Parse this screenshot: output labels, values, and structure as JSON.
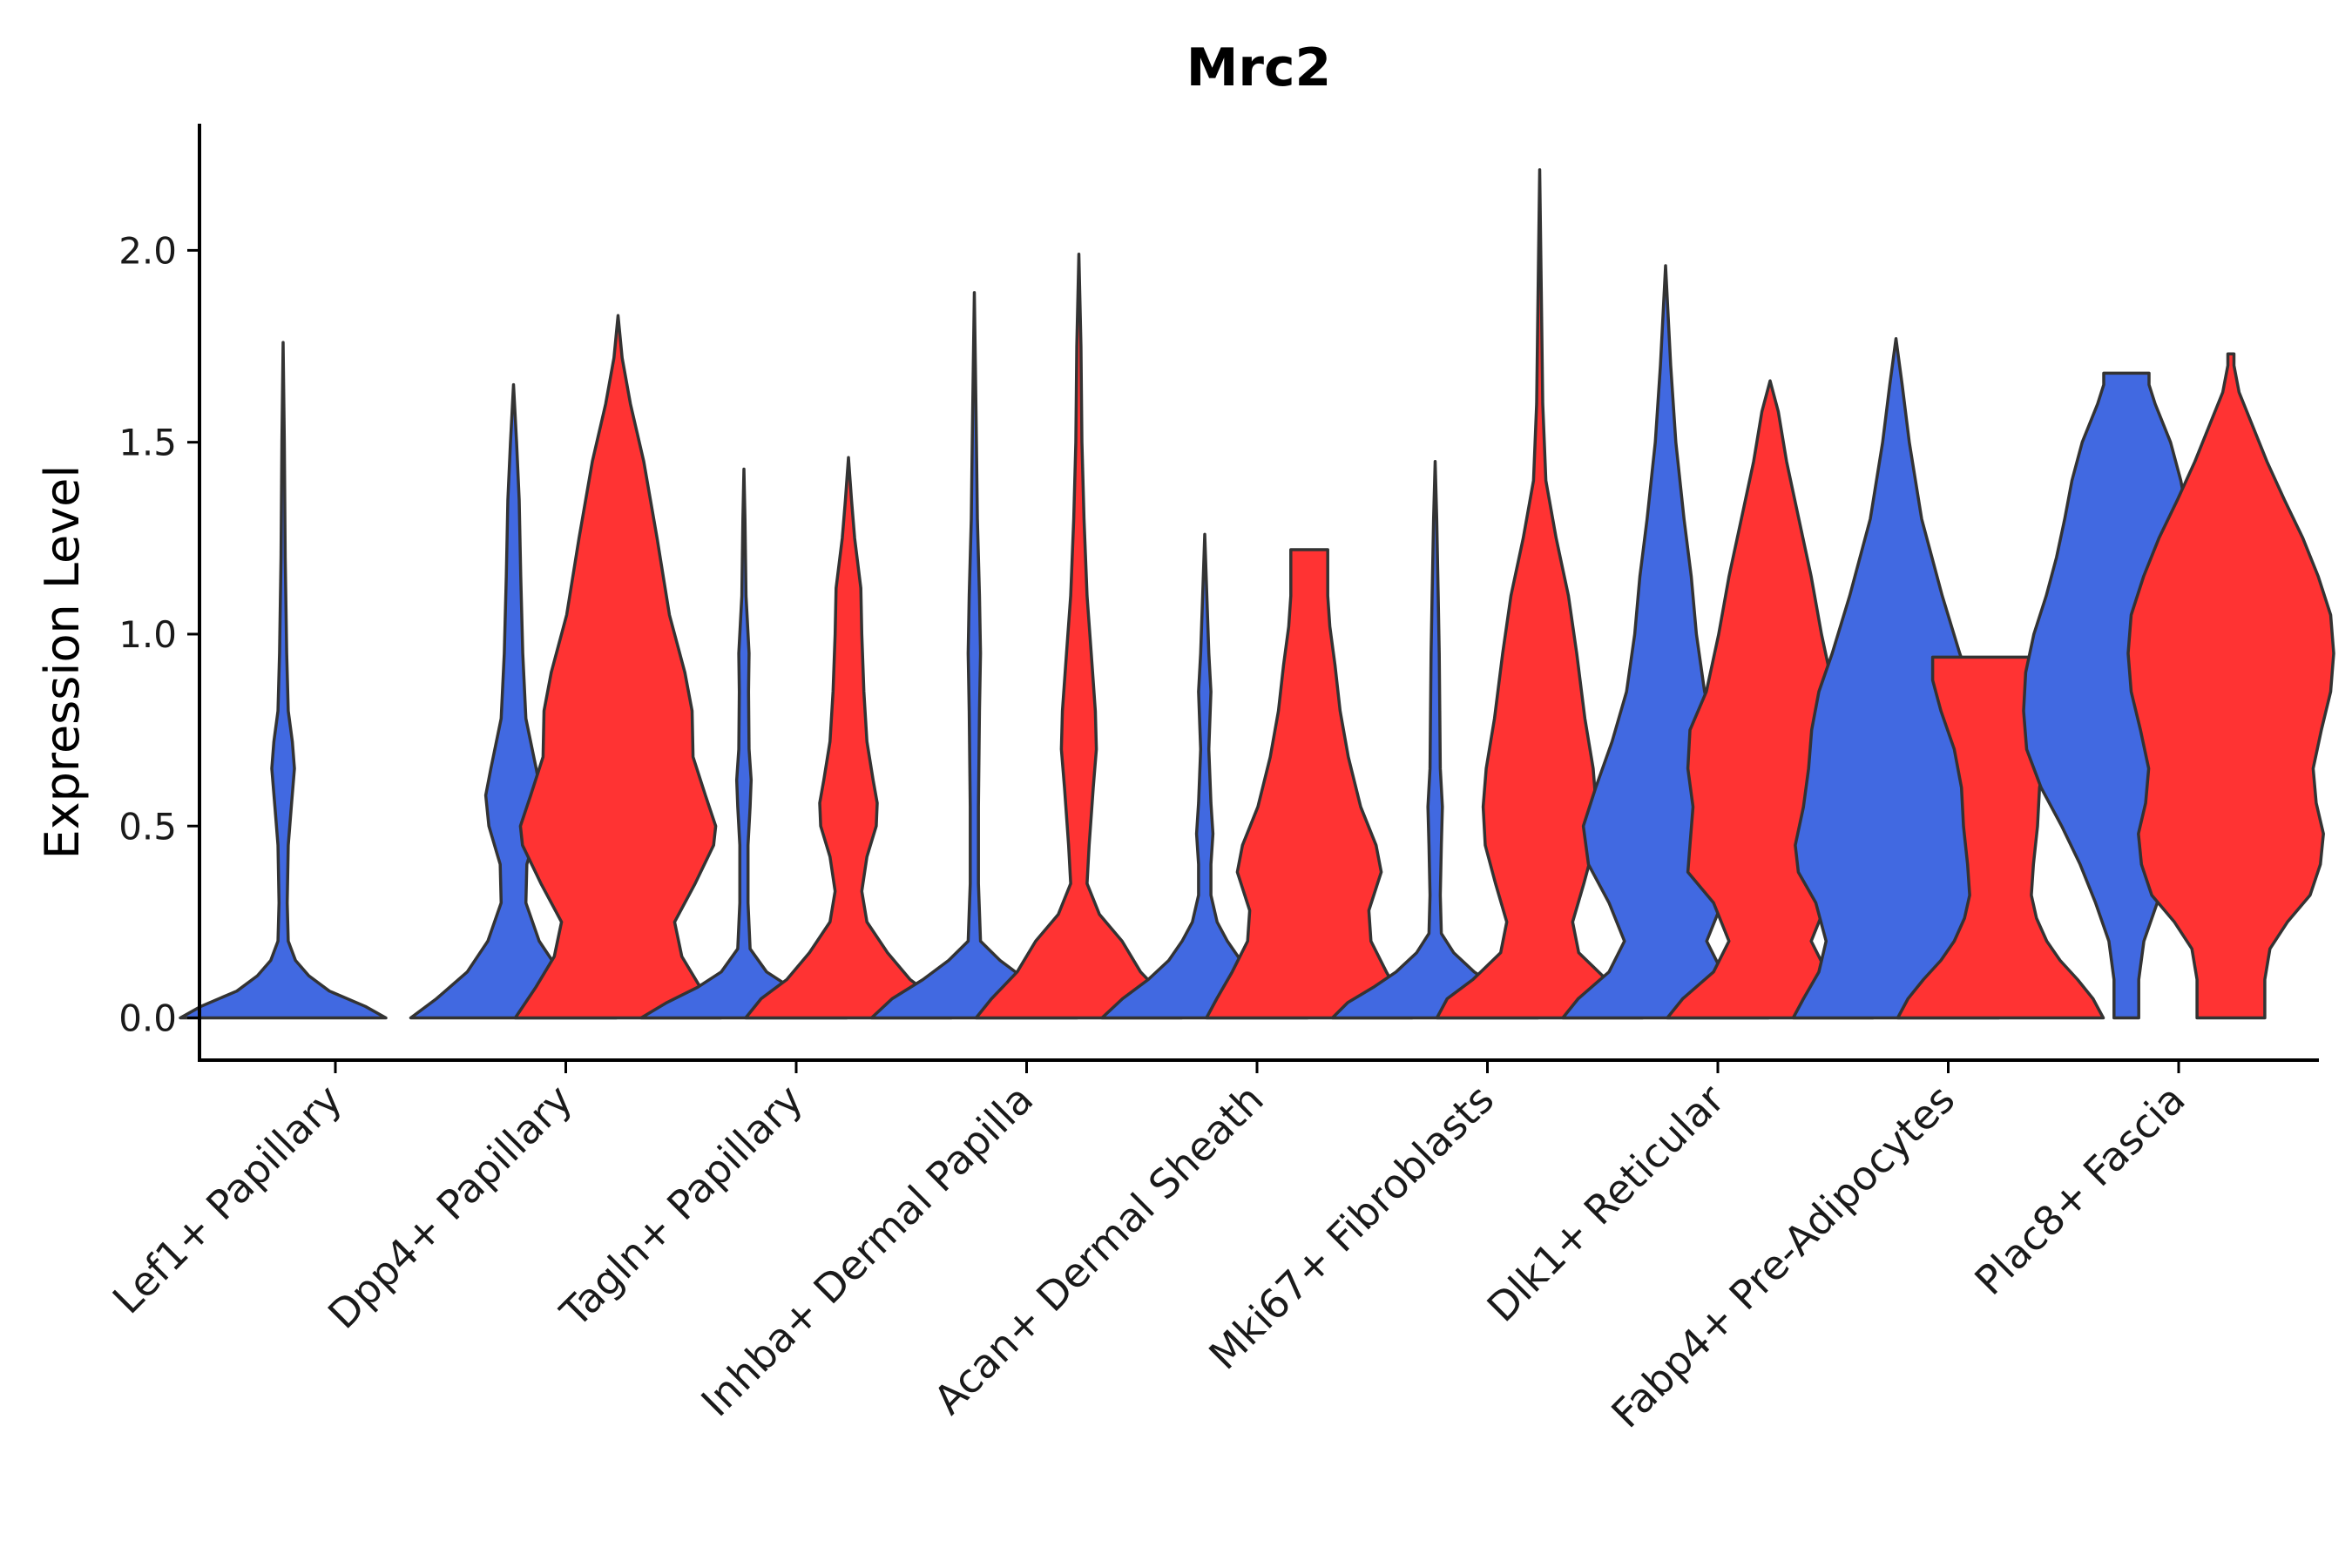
{
  "chart_data": {
    "type": "violin",
    "title": "Mrc2",
    "xlabel": "",
    "ylabel": "Expression Level",
    "ylim": [
      -0.11,
      2.33
    ],
    "yticks": [
      0.0,
      0.5,
      1.0,
      1.5,
      2.0
    ],
    "ytick_labels": [
      "0.0",
      "0.5",
      "1.0",
      "1.5",
      "2.0"
    ],
    "grid": false,
    "legend": "none",
    "series": [
      {
        "name": "group-blue",
        "color": "#4169E1"
      },
      {
        "name": "group-red",
        "color": "#FF3333"
      }
    ],
    "categories": [
      "Lef1+ Papillary",
      "Dpp4+ Papillary",
      "Tagln+ Papillary",
      "Inhba+ Dermal Papilla",
      "Acan+ Dermal Sheath",
      "Mki67+ Fibroblasts",
      "Dlk1+ Reticular",
      "Fabp4+ Pre-Adipocytes",
      "Plac8+ Fascia"
    ],
    "violins": [
      {
        "category": "Lef1+ Papillary",
        "series": "group-blue",
        "max": 1.76,
        "profile": [
          [
            0.0,
            1.0
          ],
          [
            0.03,
            0.8
          ],
          [
            0.07,
            0.45
          ],
          [
            0.11,
            0.25
          ],
          [
            0.15,
            0.12
          ],
          [
            0.2,
            0.05
          ],
          [
            0.3,
            0.04
          ],
          [
            0.45,
            0.05
          ],
          [
            0.55,
            0.08
          ],
          [
            0.65,
            0.11
          ],
          [
            0.72,
            0.09
          ],
          [
            0.8,
            0.05
          ],
          [
            0.95,
            0.035
          ],
          [
            1.2,
            0.02
          ],
          [
            1.5,
            0.012
          ],
          [
            1.76,
            0.0
          ]
        ]
      },
      {
        "category": "Dpp4+ Papillary",
        "series": "group-blue",
        "max": 1.65,
        "profile": [
          [
            0.0,
            1.0
          ],
          [
            0.05,
            0.75
          ],
          [
            0.12,
            0.45
          ],
          [
            0.2,
            0.25
          ],
          [
            0.3,
            0.12
          ],
          [
            0.4,
            0.13
          ],
          [
            0.5,
            0.24
          ],
          [
            0.58,
            0.27
          ],
          [
            0.65,
            0.22
          ],
          [
            0.78,
            0.12
          ],
          [
            0.95,
            0.09
          ],
          [
            1.15,
            0.07
          ],
          [
            1.35,
            0.055
          ],
          [
            1.5,
            0.03
          ],
          [
            1.65,
            0.0
          ]
        ]
      },
      {
        "category": "Dpp4+ Papillary",
        "series": "group-red",
        "max": 1.83,
        "profile": [
          [
            0.0,
            1.0
          ],
          [
            0.08,
            0.8
          ],
          [
            0.16,
            0.62
          ],
          [
            0.25,
            0.55
          ],
          [
            0.35,
            0.75
          ],
          [
            0.45,
            0.93
          ],
          [
            0.5,
            0.95
          ],
          [
            0.58,
            0.85
          ],
          [
            0.68,
            0.73
          ],
          [
            0.8,
            0.72
          ],
          [
            0.9,
            0.65
          ],
          [
            1.05,
            0.5
          ],
          [
            1.25,
            0.38
          ],
          [
            1.45,
            0.25
          ],
          [
            1.6,
            0.12
          ],
          [
            1.72,
            0.04
          ],
          [
            1.83,
            0.0
          ]
        ]
      },
      {
        "category": "Tagln+ Papillary",
        "series": "group-blue",
        "max": 1.43,
        "profile": [
          [
            0.0,
            1.0
          ],
          [
            0.04,
            0.75
          ],
          [
            0.08,
            0.45
          ],
          [
            0.12,
            0.22
          ],
          [
            0.18,
            0.06
          ],
          [
            0.3,
            0.04
          ],
          [
            0.45,
            0.04
          ],
          [
            0.55,
            0.06
          ],
          [
            0.62,
            0.07
          ],
          [
            0.7,
            0.05
          ],
          [
            0.85,
            0.045
          ],
          [
            0.95,
            0.05
          ],
          [
            1.1,
            0.02
          ],
          [
            1.3,
            0.01
          ],
          [
            1.43,
            0.0
          ]
        ]
      },
      {
        "category": "Tagln+ Papillary",
        "series": "group-red",
        "max": 1.46,
        "profile": [
          [
            0.0,
            1.0
          ],
          [
            0.05,
            0.85
          ],
          [
            0.1,
            0.6
          ],
          [
            0.17,
            0.38
          ],
          [
            0.25,
            0.18
          ],
          [
            0.33,
            0.13
          ],
          [
            0.42,
            0.18
          ],
          [
            0.5,
            0.27
          ],
          [
            0.56,
            0.28
          ],
          [
            0.62,
            0.24
          ],
          [
            0.72,
            0.18
          ],
          [
            0.85,
            0.15
          ],
          [
            1.0,
            0.13
          ],
          [
            1.12,
            0.12
          ],
          [
            1.25,
            0.06
          ],
          [
            1.35,
            0.03
          ],
          [
            1.46,
            0.0
          ]
        ]
      },
      {
        "category": "Inhba+ Dermal Papilla",
        "series": "group-blue",
        "max": 1.89,
        "profile": [
          [
            0.0,
            1.0
          ],
          [
            0.05,
            0.8
          ],
          [
            0.1,
            0.5
          ],
          [
            0.15,
            0.25
          ],
          [
            0.2,
            0.06
          ],
          [
            0.35,
            0.04
          ],
          [
            0.55,
            0.04
          ],
          [
            0.8,
            0.05
          ],
          [
            0.95,
            0.06
          ],
          [
            1.1,
            0.05
          ],
          [
            1.3,
            0.03
          ],
          [
            1.5,
            0.02
          ],
          [
            1.7,
            0.01
          ],
          [
            1.89,
            0.0
          ]
        ]
      },
      {
        "category": "Inhba+ Dermal Papilla",
        "series": "group-red",
        "max": 1.99,
        "profile": [
          [
            0.0,
            1.0
          ],
          [
            0.05,
            0.85
          ],
          [
            0.12,
            0.6
          ],
          [
            0.2,
            0.42
          ],
          [
            0.27,
            0.2
          ],
          [
            0.35,
            0.08
          ],
          [
            0.45,
            0.1
          ],
          [
            0.6,
            0.14
          ],
          [
            0.7,
            0.17
          ],
          [
            0.8,
            0.16
          ],
          [
            0.95,
            0.12
          ],
          [
            1.1,
            0.08
          ],
          [
            1.3,
            0.05
          ],
          [
            1.5,
            0.03
          ],
          [
            1.75,
            0.02
          ],
          [
            1.99,
            0.0
          ]
        ]
      },
      {
        "category": "Acan+ Dermal Sheath",
        "series": "group-blue",
        "max": 1.26,
        "profile": [
          [
            0.0,
            1.0
          ],
          [
            0.05,
            0.8
          ],
          [
            0.1,
            0.55
          ],
          [
            0.15,
            0.35
          ],
          [
            0.2,
            0.22
          ],
          [
            0.25,
            0.12
          ],
          [
            0.32,
            0.06
          ],
          [
            0.4,
            0.06
          ],
          [
            0.48,
            0.08
          ],
          [
            0.56,
            0.06
          ],
          [
            0.7,
            0.04
          ],
          [
            0.85,
            0.06
          ],
          [
            0.95,
            0.04
          ],
          [
            1.1,
            0.02
          ],
          [
            1.26,
            0.0
          ]
        ]
      },
      {
        "category": "Acan+ Dermal Sheath",
        "series": "group-red",
        "max": 1.22,
        "profile": [
          [
            0.0,
            1.0
          ],
          [
            0.05,
            0.9
          ],
          [
            0.12,
            0.75
          ],
          [
            0.2,
            0.6
          ],
          [
            0.28,
            0.58
          ],
          [
            0.38,
            0.7
          ],
          [
            0.45,
            0.65
          ],
          [
            0.55,
            0.5
          ],
          [
            0.68,
            0.38
          ],
          [
            0.8,
            0.3
          ],
          [
            0.92,
            0.25
          ],
          [
            1.02,
            0.2
          ],
          [
            1.1,
            0.18
          ],
          [
            1.2,
            0.18
          ],
          [
            1.22,
            0.18
          ]
        ]
      },
      {
        "category": "Mki67+ Fibroblasts",
        "series": "group-blue",
        "max": 1.45,
        "profile": [
          [
            0.0,
            1.0
          ],
          [
            0.04,
            0.85
          ],
          [
            0.08,
            0.6
          ],
          [
            0.12,
            0.38
          ],
          [
            0.17,
            0.18
          ],
          [
            0.22,
            0.06
          ],
          [
            0.32,
            0.05
          ],
          [
            0.45,
            0.06
          ],
          [
            0.55,
            0.07
          ],
          [
            0.65,
            0.05
          ],
          [
            0.8,
            0.045
          ],
          [
            0.95,
            0.04
          ],
          [
            1.1,
            0.03
          ],
          [
            1.3,
            0.015
          ],
          [
            1.45,
            0.0
          ]
        ]
      },
      {
        "category": "Mki67+ Fibroblasts",
        "series": "group-red",
        "max": 2.21,
        "profile": [
          [
            0.0,
            1.0
          ],
          [
            0.05,
            0.9
          ],
          [
            0.1,
            0.65
          ],
          [
            0.17,
            0.38
          ],
          [
            0.25,
            0.32
          ],
          [
            0.35,
            0.43
          ],
          [
            0.45,
            0.53
          ],
          [
            0.55,
            0.55
          ],
          [
            0.65,
            0.52
          ],
          [
            0.78,
            0.44
          ],
          [
            0.95,
            0.36
          ],
          [
            1.1,
            0.28
          ],
          [
            1.25,
            0.16
          ],
          [
            1.4,
            0.06
          ],
          [
            1.6,
            0.03
          ],
          [
            1.9,
            0.015
          ],
          [
            2.21,
            0.0
          ]
        ]
      },
      {
        "category": "Dlk1+ Reticular",
        "series": "group-blue",
        "max": 1.96,
        "profile": [
          [
            0.0,
            1.0
          ],
          [
            0.05,
            0.85
          ],
          [
            0.12,
            0.55
          ],
          [
            0.2,
            0.4
          ],
          [
            0.3,
            0.55
          ],
          [
            0.4,
            0.75
          ],
          [
            0.5,
            0.8
          ],
          [
            0.6,
            0.68
          ],
          [
            0.72,
            0.52
          ],
          [
            0.85,
            0.38
          ],
          [
            1.0,
            0.3
          ],
          [
            1.15,
            0.25
          ],
          [
            1.3,
            0.18
          ],
          [
            1.5,
            0.1
          ],
          [
            1.7,
            0.05
          ],
          [
            1.96,
            0.0
          ]
        ]
      },
      {
        "category": "Dlk1+ Reticular",
        "series": "group-red",
        "max": 1.66,
        "profile": [
          [
            0.0,
            1.0
          ],
          [
            0.05,
            0.85
          ],
          [
            0.12,
            0.55
          ],
          [
            0.2,
            0.4
          ],
          [
            0.3,
            0.55
          ],
          [
            0.38,
            0.8
          ],
          [
            0.45,
            0.78
          ],
          [
            0.55,
            0.75
          ],
          [
            0.65,
            0.8
          ],
          [
            0.75,
            0.78
          ],
          [
            0.85,
            0.62
          ],
          [
            1.0,
            0.5
          ],
          [
            1.15,
            0.4
          ],
          [
            1.3,
            0.28
          ],
          [
            1.45,
            0.16
          ],
          [
            1.58,
            0.08
          ],
          [
            1.66,
            0.0
          ]
        ]
      },
      {
        "category": "Fabp4+ Pre-Adipocytes",
        "series": "group-blue",
        "max": 1.77,
        "profile": [
          [
            0.0,
            1.0
          ],
          [
            0.05,
            0.9
          ],
          [
            0.12,
            0.75
          ],
          [
            0.2,
            0.68
          ],
          [
            0.3,
            0.78
          ],
          [
            0.38,
            0.95
          ],
          [
            0.45,
            0.98
          ],
          [
            0.55,
            0.9
          ],
          [
            0.65,
            0.85
          ],
          [
            0.75,
            0.82
          ],
          [
            0.85,
            0.75
          ],
          [
            0.95,
            0.62
          ],
          [
            1.1,
            0.45
          ],
          [
            1.3,
            0.25
          ],
          [
            1.5,
            0.13
          ],
          [
            1.65,
            0.06
          ],
          [
            1.77,
            0.0
          ]
        ]
      },
      {
        "category": "Fabp4+ Pre-Adipocytes",
        "series": "group-red",
        "max": 0.94,
        "profile": [
          [
            0.0,
            1.0
          ],
          [
            0.05,
            0.9
          ],
          [
            0.1,
            0.75
          ],
          [
            0.15,
            0.58
          ],
          [
            0.2,
            0.45
          ],
          [
            0.26,
            0.35
          ],
          [
            0.32,
            0.3
          ],
          [
            0.4,
            0.32
          ],
          [
            0.5,
            0.36
          ],
          [
            0.6,
            0.38
          ],
          [
            0.7,
            0.45
          ],
          [
            0.8,
            0.58
          ],
          [
            0.88,
            0.66
          ],
          [
            0.94,
            0.66
          ]
        ]
      },
      {
        "category": "Plac8+ Fascia",
        "series": "group-blue",
        "max": 1.68,
        "profile": [
          [
            0.0,
            0.12
          ],
          [
            0.1,
            0.12
          ],
          [
            0.2,
            0.17
          ],
          [
            0.3,
            0.3
          ],
          [
            0.4,
            0.45
          ],
          [
            0.5,
            0.63
          ],
          [
            0.6,
            0.83
          ],
          [
            0.7,
            0.97
          ],
          [
            0.8,
            1.0
          ],
          [
            0.9,
            0.98
          ],
          [
            1.0,
            0.9
          ],
          [
            1.1,
            0.78
          ],
          [
            1.2,
            0.68
          ],
          [
            1.3,
            0.6
          ],
          [
            1.4,
            0.53
          ],
          [
            1.5,
            0.43
          ],
          [
            1.6,
            0.28
          ],
          [
            1.65,
            0.22
          ],
          [
            1.68,
            0.22
          ]
        ]
      },
      {
        "category": "Plac8+ Fascia",
        "series": "group-red",
        "max": 1.73,
        "profile": [
          [
            0.0,
            0.33
          ],
          [
            0.1,
            0.33
          ],
          [
            0.18,
            0.38
          ],
          [
            0.25,
            0.55
          ],
          [
            0.32,
            0.77
          ],
          [
            0.4,
            0.87
          ],
          [
            0.48,
            0.9
          ],
          [
            0.56,
            0.83
          ],
          [
            0.65,
            0.8
          ],
          [
            0.75,
            0.88
          ],
          [
            0.85,
            0.97
          ],
          [
            0.95,
            1.0
          ],
          [
            1.05,
            0.97
          ],
          [
            1.15,
            0.85
          ],
          [
            1.25,
            0.7
          ],
          [
            1.35,
            0.52
          ],
          [
            1.45,
            0.35
          ],
          [
            1.55,
            0.2
          ],
          [
            1.63,
            0.08
          ],
          [
            1.7,
            0.03
          ],
          [
            1.73,
            0.03
          ]
        ]
      }
    ]
  }
}
